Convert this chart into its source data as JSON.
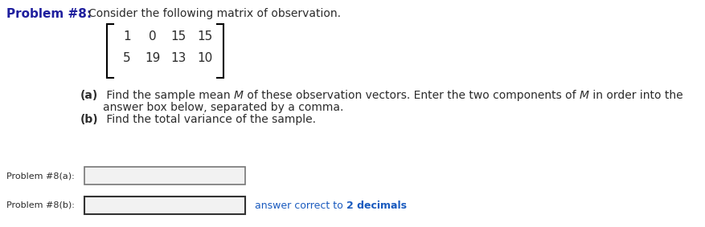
{
  "title_bold": "Problem #8:",
  "title_normal": "Consider the following matrix of observation.",
  "matrix_rows": [
    [
      "1",
      "0",
      "15",
      "15"
    ],
    [
      "5",
      "19",
      "13",
      "10"
    ]
  ],
  "part_a_label": "(a)",
  "part_a_text": " Find the sample mean ",
  "part_a_M1": "M",
  "part_a_text2": " of these observation vectors. Enter the two components of ",
  "part_a_M2": "M",
  "part_a_text3": " in order into the",
  "part_a_line2": "answer box below, separated by a comma.",
  "part_b_label": "(b)",
  "part_b_text": " Find the total variance of the sample.",
  "answer_a_label": "Problem #8(a):",
  "answer_b_label": "Problem #8(b):",
  "answer_suffix_normal": "answer correct to ",
  "answer_suffix_bold": "2 decimals",
  "color_problem_bold": "#1f1f9e",
  "color_normal": "#2b2b2b",
  "color_blue": "#1a5bbf",
  "color_matrix": "#2b2b2b",
  "background": "#ffffff",
  "fig_width": 8.77,
  "fig_height": 2.83,
  "dpi": 100
}
